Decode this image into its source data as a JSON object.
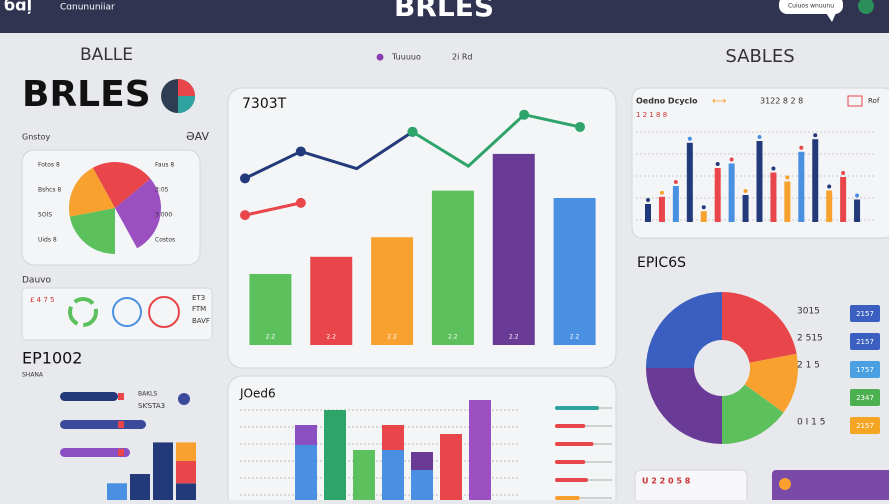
{
  "header": {
    "logo": "бɑļ",
    "brand": "Cɑnununiiar",
    "title": "BRLES",
    "badge": "Cuiuos wnuunu"
  },
  "left": {
    "label": "BALLE",
    "title": "BRLES",
    "subtitle": "Gnstoy",
    "subtitle_right": "ƏAV",
    "pie": {
      "values": [
        22,
        20,
        22,
        28
      ],
      "colors": [
        "#5cc05c",
        "#f8a12f",
        "#e8464a",
        "#9b4fc0"
      ],
      "labels_left": [
        "Fotos 8",
        "Bshcs 8",
        "5OlS",
        "Uids 8"
      ],
      "labels_right": [
        "Faus 8",
        "3:05",
        "3 000",
        "Costos"
      ]
    },
    "section": "Dauvo",
    "section_texts": [
      "£ 4 7 5",
      "ET3",
      "FTM",
      "BAVF"
    ],
    "kpi": "EP1002",
    "kpi_sub": "SHANA",
    "hbars": {
      "values": [
        58,
        86,
        70
      ],
      "colors": [
        "#233a7a",
        "#3a4a9a",
        "#8a4fc0"
      ],
      "labels": [
        "BAKLS",
        "SƘSTA3"
      ]
    },
    "stack": {
      "ylim": [
        0,
        70
      ],
      "columns": [
        [
          {
            "color": "#4a90e2",
            "value": 18
          }
        ],
        [
          {
            "color": "#233a7a",
            "value": 28
          }
        ],
        [
          {
            "color": "#233a7a",
            "value": 62
          }
        ],
        [
          {
            "color": "#233a7a",
            "value": 18
          },
          {
            "color": "#e8464a",
            "value": 24
          },
          {
            "color": "#f8a12f",
            "value": 20
          }
        ]
      ]
    }
  },
  "center": {
    "label": "Tuuuuo",
    "label_right": "2i Rd",
    "main": {
      "title": "7303T",
      "ylim": [
        0,
        100
      ],
      "bar_labels": [
        "2.2",
        "2.2",
        "2.2",
        "2.2",
        "2.2",
        "2.2"
      ],
      "bars": [
        29,
        36,
        44,
        63,
        78,
        60
      ],
      "bar_colors": [
        "#5cc05c",
        "#e8464a",
        "#f8a12f",
        "#5cc05c",
        "#6a3b96",
        "#4a90e2"
      ],
      "lines": [
        {
          "color": "#233a7a",
          "values": [
            68,
            79,
            72,
            87,
            null,
            null,
            null
          ]
        },
        {
          "color": "#2ea36a",
          "values": [
            null,
            null,
            null,
            87,
            73,
            94,
            89
          ]
        },
        {
          "color": "#e8464a",
          "values": [
            53,
            58,
            null,
            null,
            null,
            null,
            null
          ]
        }
      ]
    },
    "lower": {
      "title": "JOed6",
      "ylim": [
        0,
        100
      ],
      "columns": [
        [
          {
            "color": "#4a90e2",
            "value": 55
          },
          {
            "color": "#8a4fc0",
            "value": 20
          }
        ],
        [
          {
            "color": "#2ea36a",
            "value": 90
          }
        ],
        [
          {
            "color": "#5cc05c",
            "value": 50
          }
        ],
        [
          {
            "color": "#4a90e2",
            "value": 50
          },
          {
            "color": "#e8464a",
            "value": 25
          }
        ],
        [
          {
            "color": "#4a90e2",
            "value": 30
          },
          {
            "color": "#6a3b96",
            "value": 18
          }
        ],
        [
          {
            "color": "#e8464a",
            "value": 66
          }
        ],
        [
          {
            "color": "#9b4fc0",
            "value": 100
          }
        ]
      ],
      "lines": {
        "values": [
          80,
          55,
          70,
          55,
          60,
          45
        ],
        "colors": [
          "#2ea3a0",
          "#e8464a",
          "#e8464a",
          "#e8464a",
          "#e8464a",
          "#f8a12f"
        ]
      }
    }
  },
  "right": {
    "label": "SABLES",
    "top": {
      "title": "Oedno Dcyclo",
      "range": "3122 8 2 8",
      "sub": "1 2 1 8 8",
      "tag": "Rof",
      "ylim": [
        0,
        100
      ],
      "bars": [
        20,
        28,
        40,
        88,
        12,
        60,
        65,
        30,
        90,
        55,
        45,
        78,
        92,
        35,
        50,
        25
      ],
      "colors": [
        "#233a7a",
        "#e8464a",
        "#4a90e2",
        "#233a7a",
        "#f8a12f",
        "#e8464a",
        "#4a90e2",
        "#233a7a",
        "#233a7a",
        "#e8464a",
        "#f8a12f",
        "#4a90e2",
        "#233a7a",
        "#f8a12f",
        "#e8464a",
        "#233a7a"
      ]
    },
    "donut": {
      "title": "EPIC6S",
      "values": [
        22,
        13,
        15,
        25,
        25
      ],
      "colors": [
        "#e8464a",
        "#f8a12f",
        "#5cc05c",
        "#6a3b96",
        "#3b5fc0"
      ],
      "labels": [
        "3015",
        "2 515",
        "2 1 5",
        "0 I 1 5"
      ],
      "legend": [
        {
          "color": "#3b5fc0",
          "text": "2157"
        },
        {
          "color": "#3b5fc0",
          "text": "2157"
        },
        {
          "color": "#4aa0e0",
          "text": "1757"
        },
        {
          "color": "#4caf50",
          "text": "2347"
        },
        {
          "color": "#f5a524",
          "text": "2157"
        }
      ]
    },
    "footer": "U 2 2 0 5 8"
  }
}
